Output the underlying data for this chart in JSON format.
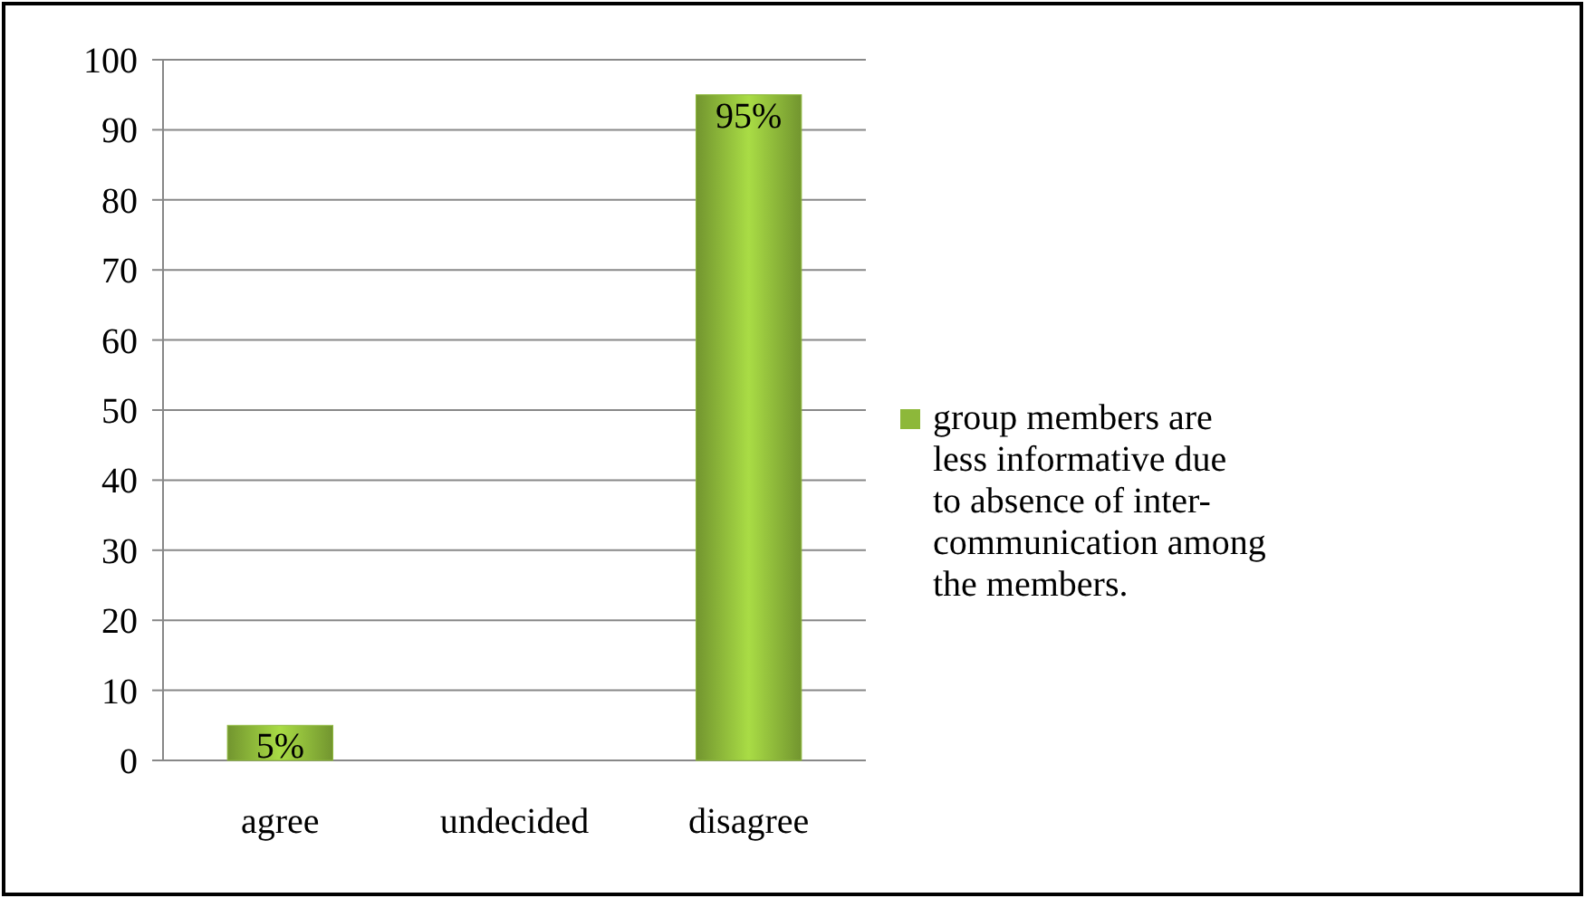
{
  "chart_data": {
    "type": "bar",
    "categories": [
      "agree",
      "undecided",
      "disagree"
    ],
    "series": [
      {
        "name": "group members are less informative due to absence of inter-communication among the members.",
        "color": "#8db83a",
        "values": [
          5,
          0,
          95
        ],
        "value_labels": [
          "5%",
          null,
          "95%"
        ]
      }
    ],
    "ylim": [
      0,
      100
    ],
    "yticks": [
      0,
      10,
      20,
      30,
      40,
      50,
      60,
      70,
      80,
      90,
      100
    ],
    "grid": "y",
    "legend": "right"
  }
}
